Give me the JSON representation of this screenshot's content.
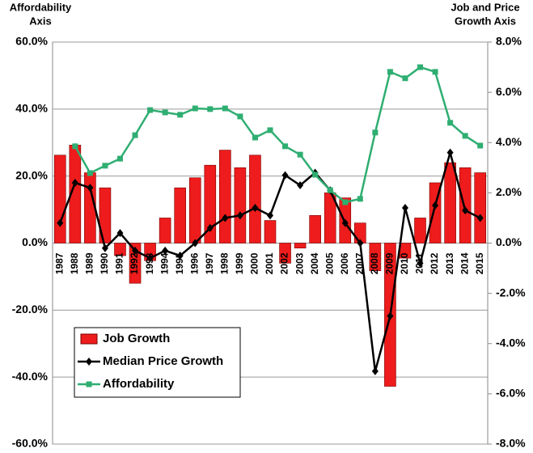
{
  "chart_data": {
    "type": "bar-line",
    "y_label": [
      "Affordability",
      "Axis"
    ],
    "y2_label": [
      "Job and Price",
      "Growth Axis"
    ],
    "categories": [
      "1987",
      "1988",
      "1989",
      "1990",
      "1991",
      "1992",
      "1993",
      "1994",
      "1995",
      "1996",
      "1997",
      "1998",
      "1999",
      "2000",
      "2001",
      "2002",
      "2003",
      "2004",
      "2005",
      "2006",
      "2007",
      "2008",
      "2009",
      "2010",
      "2011",
      "2012",
      "2013",
      "2014",
      "2015"
    ],
    "series": [
      {
        "name": "Job Growth",
        "type": "bar",
        "axis": "y2",
        "color": "#ee1c1c",
        "values": [
          3.5,
          3.9,
          2.8,
          2.2,
          -0.5,
          -1.6,
          -0.7,
          1.0,
          2.2,
          2.6,
          3.1,
          3.7,
          3.0,
          3.5,
          0.9,
          -0.8,
          -0.2,
          1.1,
          2.0,
          1.8,
          0.8,
          -1.1,
          -5.7,
          -0.6,
          1.0,
          2.4,
          3.2,
          3.0,
          2.8
        ]
      },
      {
        "name": "Median Price Growth",
        "type": "line",
        "marker": "diamond",
        "axis": "y2",
        "color": "#000000",
        "values": [
          0.8,
          2.4,
          2.2,
          -0.2,
          0.4,
          -0.3,
          -0.6,
          -0.3,
          -0.5,
          0,
          0.6,
          1.0,
          1.1,
          1.4,
          1.1,
          2.7,
          2.3,
          2.8,
          2.1,
          0.8,
          0,
          -5.1,
          -2.9,
          1.4,
          -0.8,
          1.5,
          3.6,
          1.3,
          1.0
        ]
      },
      {
        "name": "Affordability",
        "type": "line",
        "marker": "square",
        "color": "#2fae72",
        "values": [
          null,
          28.9,
          20.9,
          23.1,
          25.2,
          32.2,
          39.7,
          39.0,
          38.3,
          40.2,
          40.0,
          40.2,
          37.8,
          31.5,
          33.7,
          28.9,
          26.4,
          20.4,
          15.8,
          12.2,
          13.2,
          33.0,
          51.1,
          49.2,
          52.5,
          51.1,
          35.9,
          32.0,
          29.1
        ]
      }
    ],
    "ylim": [
      -60,
      60
    ],
    "yticks": [
      {
        "value": 60,
        "label": "60.0%"
      },
      {
        "value": 40,
        "label": "40.0%"
      },
      {
        "value": 20,
        "label": "20.0%"
      },
      {
        "value": 0,
        "label": "0.0%"
      },
      {
        "value": -20,
        "label": "-20.0%"
      },
      {
        "value": -40,
        "label": "-40.0%"
      },
      {
        "value": -60,
        "label": "-60.0%"
      }
    ],
    "y2lim": [
      -8,
      8
    ],
    "y2ticks": [
      {
        "value": 8,
        "label": "8.0%"
      },
      {
        "value": 6,
        "label": "6.0%"
      },
      {
        "value": 4,
        "label": "4.0%"
      },
      {
        "value": 2,
        "label": "2.0%"
      },
      {
        "value": 0,
        "label": "0.0%"
      },
      {
        "value": -2,
        "label": "-2.0%"
      },
      {
        "value": -4,
        "label": "-4.0%"
      },
      {
        "value": -6,
        "label": "-6.0%"
      },
      {
        "value": -8,
        "label": "-8.0%"
      }
    ],
    "grid": true,
    "legend": "lower left"
  }
}
